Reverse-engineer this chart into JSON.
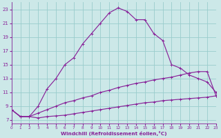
{
  "xlabel": "Windchill (Refroidissement éolien,°C)",
  "bg_color": "#cce8e8",
  "grid_color": "#99cccc",
  "line_color": "#882299",
  "x_ticks": [
    0,
    1,
    2,
    3,
    4,
    5,
    6,
    7,
    8,
    9,
    10,
    11,
    12,
    13,
    14,
    15,
    16,
    17,
    18,
    19,
    20,
    21,
    22,
    23
  ],
  "y_ticks": [
    7,
    9,
    11,
    13,
    15,
    17,
    19,
    21,
    23
  ],
  "xlim": [
    0,
    23
  ],
  "ylim": [
    6.5,
    24.0
  ],
  "curve1_x": [
    0,
    1,
    2,
    3,
    4,
    5,
    6,
    7,
    8,
    9,
    10,
    11,
    12,
    13,
    14,
    15,
    16,
    17,
    18,
    19,
    20,
    21,
    22,
    23
  ],
  "curve1_y": [
    8.5,
    7.5,
    7.5,
    9.0,
    11.5,
    13.0,
    15.0,
    16.0,
    18.0,
    19.5,
    21.0,
    22.5,
    23.2,
    22.7,
    21.5,
    21.5,
    19.5,
    18.5,
    15.0,
    14.5,
    13.5,
    13.0,
    12.5,
    11.0
  ],
  "curve2_x": [
    0,
    1,
    2,
    3,
    4,
    5,
    6,
    7,
    8,
    9,
    10,
    11,
    12,
    13,
    14,
    15,
    16,
    17,
    18,
    19,
    20,
    21,
    22,
    23
  ],
  "curve2_y": [
    8.5,
    7.5,
    7.5,
    8.0,
    8.5,
    9.0,
    9.5,
    9.8,
    10.2,
    10.5,
    11.0,
    11.3,
    11.7,
    12.0,
    12.3,
    12.5,
    12.8,
    13.0,
    13.2,
    13.5,
    13.8,
    14.0,
    14.0,
    10.5
  ],
  "curve3_x": [
    0,
    1,
    2,
    3,
    4,
    5,
    6,
    7,
    8,
    9,
    10,
    11,
    12,
    13,
    14,
    15,
    16,
    17,
    18,
    19,
    20,
    21,
    22,
    23
  ],
  "curve3_y": [
    8.5,
    7.5,
    7.5,
    7.3,
    7.5,
    7.6,
    7.7,
    7.9,
    8.1,
    8.3,
    8.5,
    8.7,
    8.9,
    9.1,
    9.3,
    9.5,
    9.6,
    9.8,
    9.9,
    10.0,
    10.1,
    10.2,
    10.3,
    10.5
  ]
}
